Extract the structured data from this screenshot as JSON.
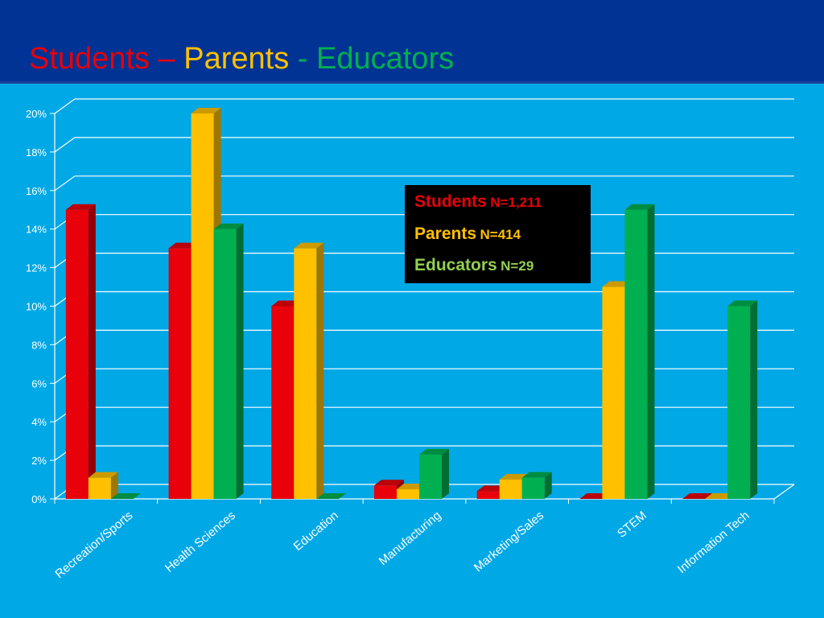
{
  "title": {
    "part1": "Students",
    "sep1": " – ",
    "part2": "Parents",
    "sep2": " - ",
    "part3": "Educators"
  },
  "colors": {
    "background": "#00a8e6",
    "header": "#003394",
    "students": "#e8000a",
    "parents": "#ffc000",
    "educators": "#00b050",
    "legend_educators_text": "#92d050"
  },
  "legend": {
    "items": [
      {
        "name": "Students",
        "n": "N=1,211"
      },
      {
        "name": "Parents",
        "n": "N=414"
      },
      {
        "name": "Educators",
        "n": "N=29"
      }
    ]
  },
  "chart_data": {
    "type": "bar",
    "style": "3d-clustered",
    "categories": [
      "Recreation/Sports",
      "Health Sciences",
      "Education",
      "Manufacturing",
      "Marketing/Sales",
      "STEM",
      "Information Tech"
    ],
    "series": [
      {
        "name": "Students",
        "values": [
          15,
          13,
          10,
          0.7,
          0.4,
          0,
          0
        ]
      },
      {
        "name": "Parents",
        "values": [
          1.1,
          20,
          13,
          0.5,
          1.0,
          11,
          0
        ]
      },
      {
        "name": "Educators",
        "values": [
          0,
          14,
          0,
          2.3,
          1.1,
          15,
          10
        ]
      }
    ],
    "y_ticks": [
      "0%",
      "2%",
      "4%",
      "6%",
      "8%",
      "10%",
      "12%",
      "14%",
      "16%",
      "18%",
      "20%"
    ],
    "ylim": [
      0,
      20
    ],
    "grid": true,
    "legend_position": "top-right-center"
  }
}
